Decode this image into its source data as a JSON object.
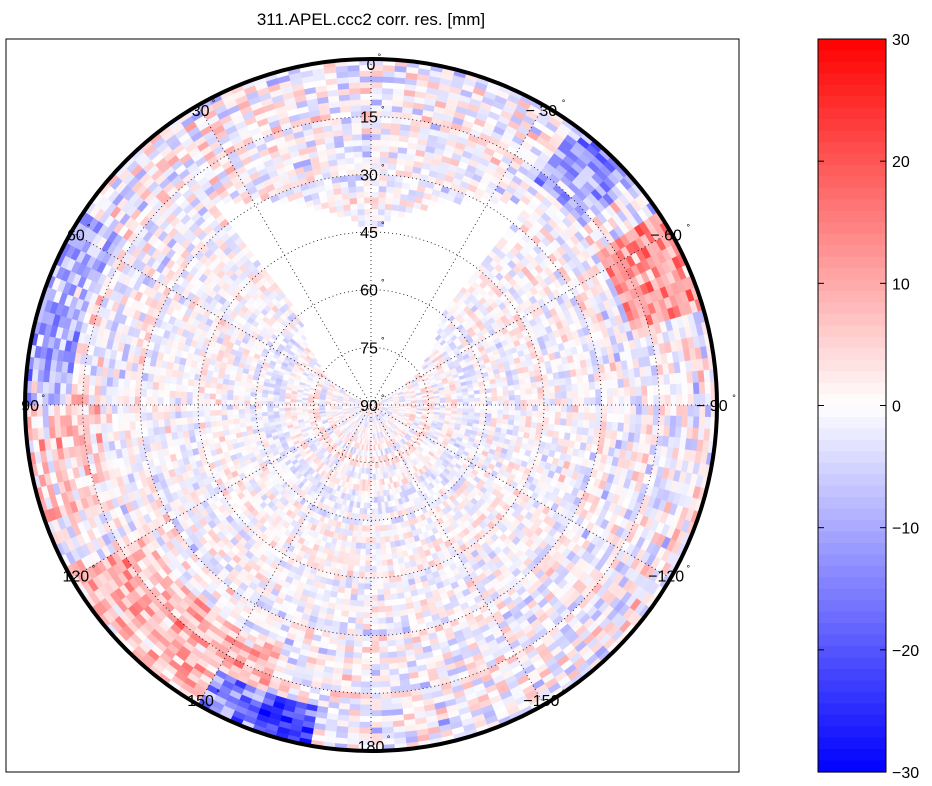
{
  "chart_data": {
    "type": "heatmap",
    "title": "311.APEL.ccc2 corr. res. [mm]",
    "projection": "polar-skyplot",
    "angular_ticks": [
      {
        "angle": 0,
        "label": "0"
      },
      {
        "angle": 30,
        "label": "30"
      },
      {
        "angle": 60,
        "label": "60"
      },
      {
        "angle": 90,
        "label": "90"
      },
      {
        "angle": 120,
        "label": "120"
      },
      {
        "angle": 150,
        "label": "150"
      },
      {
        "angle": 180,
        "label": "180"
      },
      {
        "angle": -150,
        "label": "−150"
      },
      {
        "angle": -120,
        "label": "−120"
      },
      {
        "angle": -90,
        "label": "− 90"
      },
      {
        "angle": -60,
        "label": "− 60"
      },
      {
        "angle": -30,
        "label": "− 30"
      }
    ],
    "radial_ticks": [
      {
        "value": 15,
        "label": "15"
      },
      {
        "value": 30,
        "label": "30"
      },
      {
        "value": 45,
        "label": "45"
      },
      {
        "value": 60,
        "label": "60"
      },
      {
        "value": 75,
        "label": "75"
      },
      {
        "value": 90,
        "label": "90"
      }
    ],
    "radial_range": [
      0,
      90
    ],
    "colorbar": {
      "range": [
        -30,
        30
      ],
      "ticks": [
        {
          "value": 30,
          "label": "30"
        },
        {
          "value": 20,
          "label": "20"
        },
        {
          "value": 10,
          "label": "10"
        },
        {
          "value": 0,
          "label": "0"
        },
        {
          "value": -10,
          "label": "−10"
        },
        {
          "value": -20,
          "label": "−20"
        },
        {
          "value": -30,
          "label": "−30"
        }
      ],
      "colormap": "blue-white-red",
      "low_color": "#0000ff",
      "mid_color": "#ffffff",
      "high_color": "#ff0000"
    },
    "coverage_zenith_limit_north": 45,
    "coverage_sector_north": [
      -38,
      38
    ],
    "grid": true,
    "legend": "colorbar-right"
  }
}
